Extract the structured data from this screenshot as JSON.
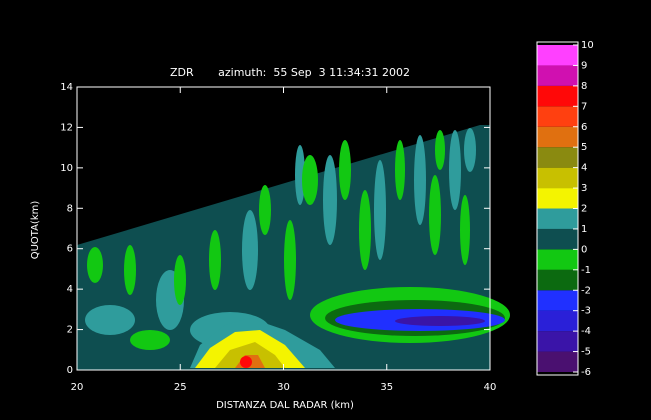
{
  "chart_data": {
    "type": "rhi-contour",
    "title": "ZDR       azimuth:  55 Sep  3 11:34:31 2002",
    "x_label": "DISTANZA DAL RADAR (km)",
    "y_label": "QUOTA(km)",
    "xlim": [
      20,
      40
    ],
    "xticks": [
      20,
      25,
      30,
      35,
      40
    ],
    "ylim": [
      0,
      14
    ],
    "yticks": [
      0,
      2,
      4,
      6,
      8,
      10,
      12,
      14
    ],
    "colorbar_lim": [
      -6,
      10
    ],
    "colorbar_ticks": [
      -6,
      -5,
      -4,
      -3,
      -2,
      -1,
      0,
      1,
      2,
      3,
      4,
      5,
      6,
      7,
      8,
      9,
      10
    ],
    "colorbar_colors": [
      "#4a1070",
      "#3a14a8",
      "#2a20d8",
      "#2030ff",
      "#0c6a10",
      "#12c812",
      "#0e4e50",
      "#2f9c9c",
      "#f4f400",
      "#c8c000",
      "#8a8a10",
      "#e07010",
      "#ff4010",
      "#ff0808",
      "#d010b0",
      "#ff40ff"
    ]
  }
}
